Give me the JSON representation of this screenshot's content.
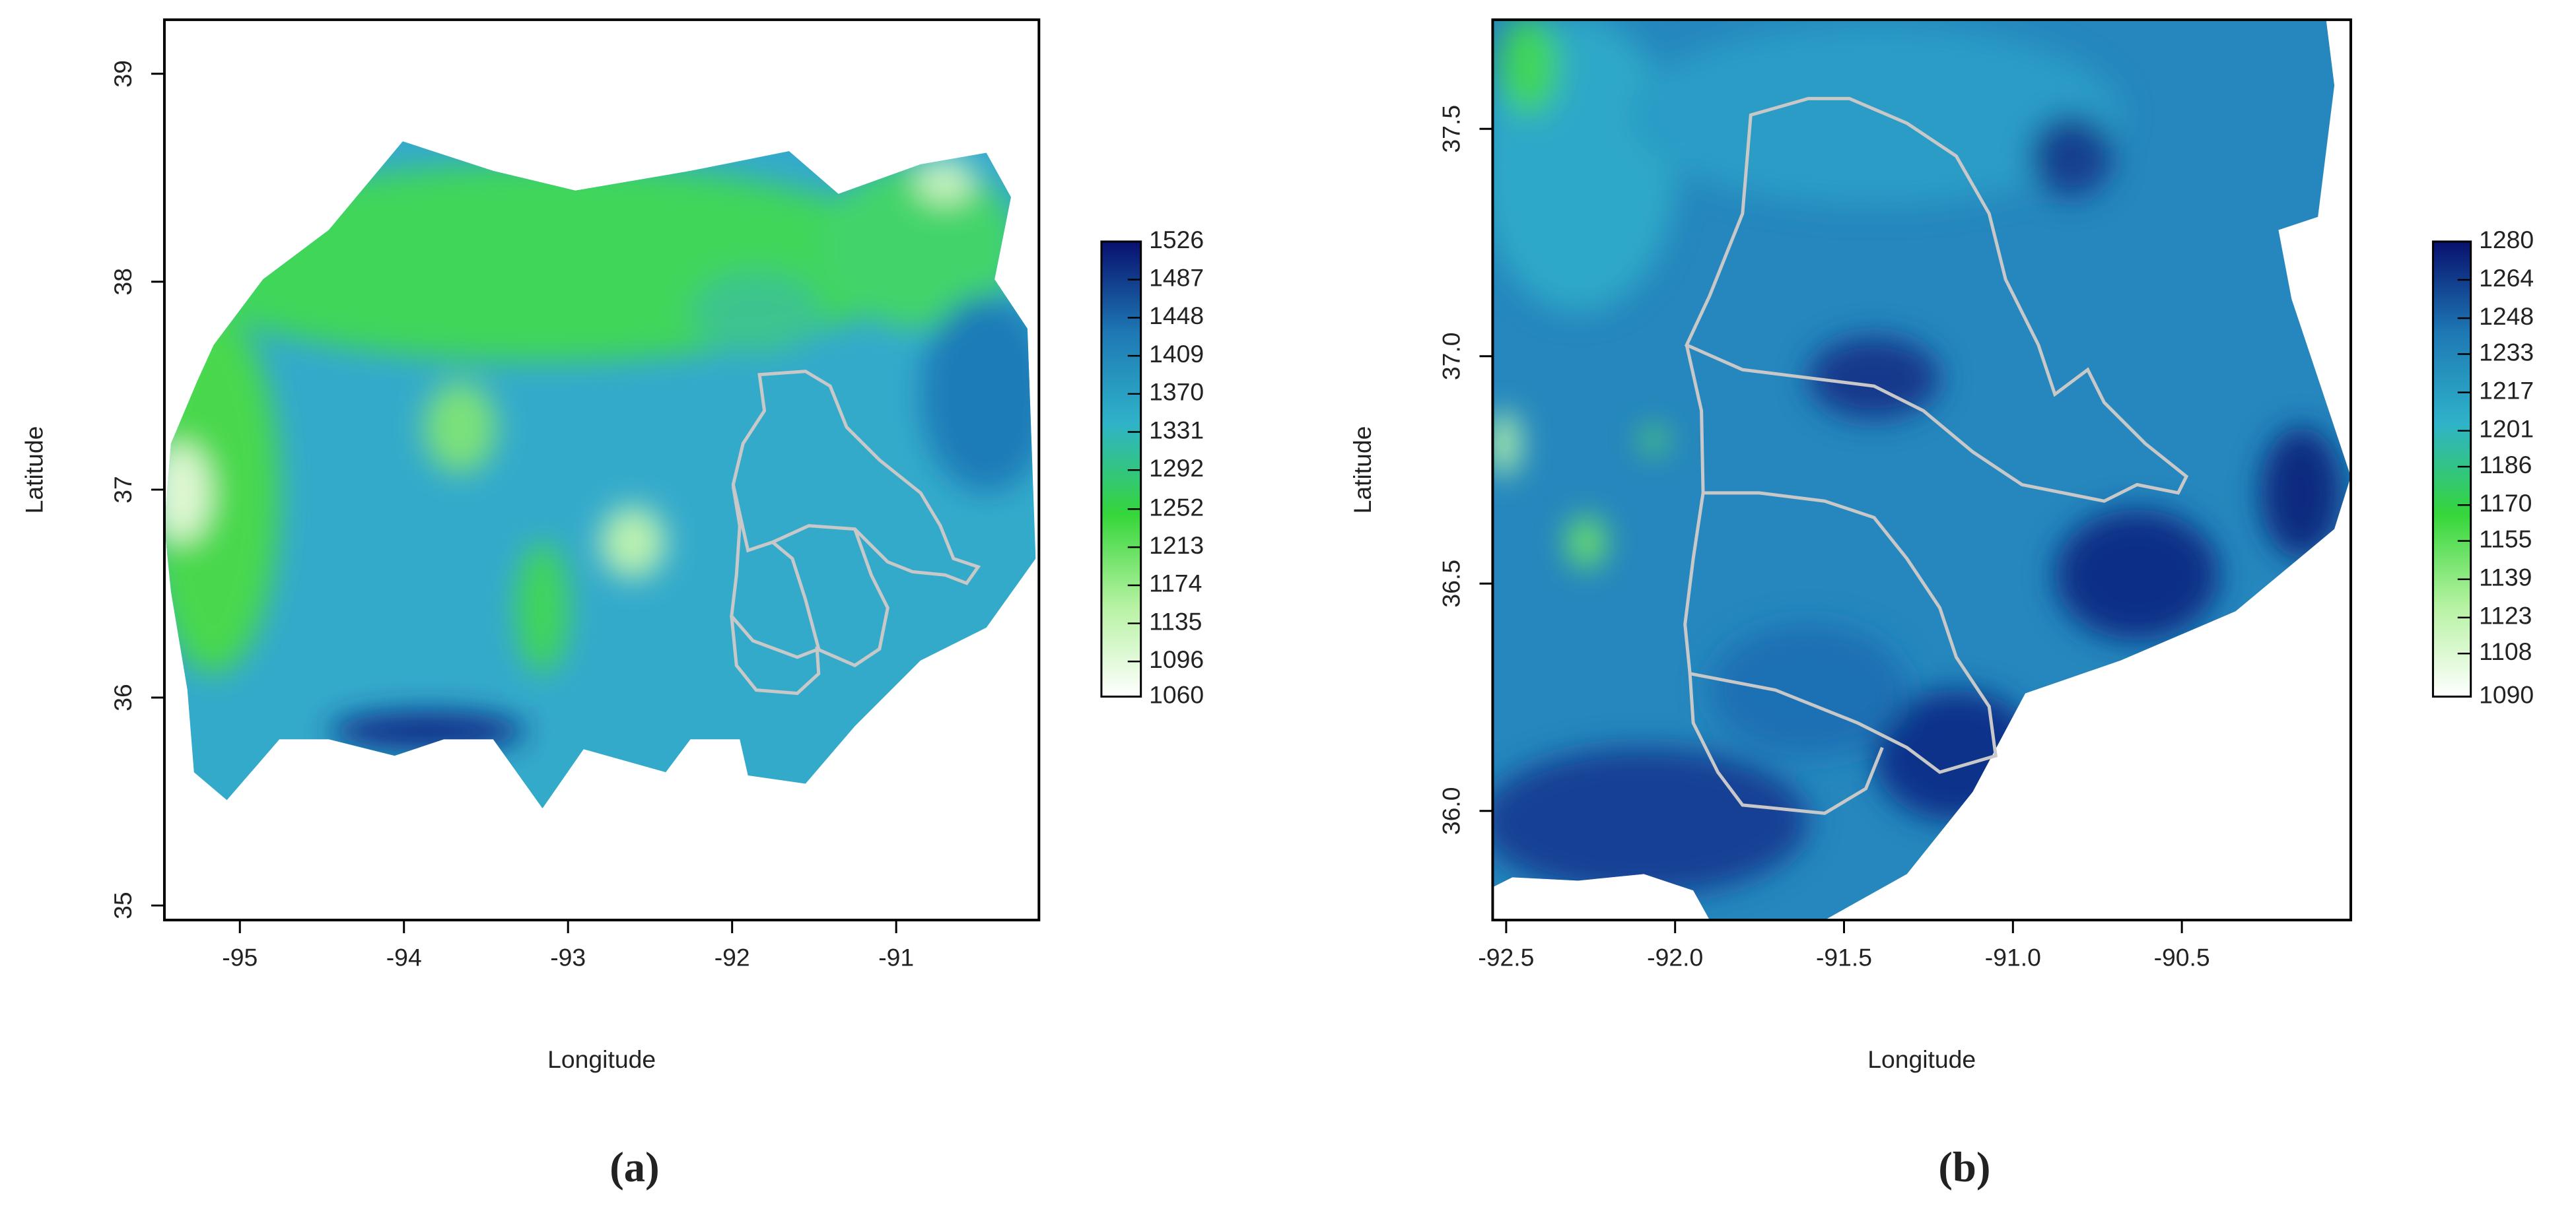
{
  "chart_data": [
    {
      "type": "map",
      "caption": "(a)",
      "xlabel": "Longitude",
      "ylabel": "Latitude",
      "xlim": [
        -95.46,
        -90.13
      ],
      "ylim": [
        34.93,
        39.26
      ],
      "xticks": [
        -95,
        -94,
        -93,
        -92,
        -91
      ],
      "yticks": [
        35,
        36,
        37,
        38,
        39
      ],
      "colorbar": {
        "clim": [
          1060,
          1526
        ],
        "ticks": [
          1526,
          1487,
          1448,
          1409,
          1370,
          1331,
          1292,
          1252,
          1213,
          1174,
          1135,
          1096,
          1060
        ],
        "colors": [
          "#ffffff",
          "#b6f2a2",
          "#35d63a",
          "#2fb3c9",
          "#1e78b4",
          "#08106e"
        ]
      }
    },
    {
      "type": "map",
      "caption": "(b)",
      "xlabel": "Longitude",
      "ylabel": "Latitude",
      "xlim": [
        -92.54,
        -90.0
      ],
      "ylim": [
        35.76,
        37.74
      ],
      "xticks": [
        {
          "value": -92.5,
          "label": "-92.5"
        },
        {
          "value": -92,
          "label": "-92.0"
        },
        {
          "value": -91.5,
          "label": "-91.5"
        },
        {
          "value": -91,
          "label": "-91.0"
        },
        {
          "value": -90.5,
          "label": "-90.5"
        }
      ],
      "yticks": [
        {
          "value": 36,
          "label": "36.0"
        },
        {
          "value": 36.5,
          "label": "36.5"
        },
        {
          "value": 37,
          "label": "37.0"
        },
        {
          "value": 37.5,
          "label": "37.5"
        }
      ],
      "colorbar": {
        "clim": [
          1090,
          1280
        ],
        "ticks": [
          1280,
          1264,
          1248,
          1233,
          1217,
          1201,
          1186,
          1170,
          1155,
          1139,
          1123,
          1108,
          1090
        ],
        "colors": [
          "#ffffff",
          "#b6f2a2",
          "#35d63a",
          "#2fb3c9",
          "#1e78b4",
          "#08106e"
        ]
      }
    }
  ]
}
